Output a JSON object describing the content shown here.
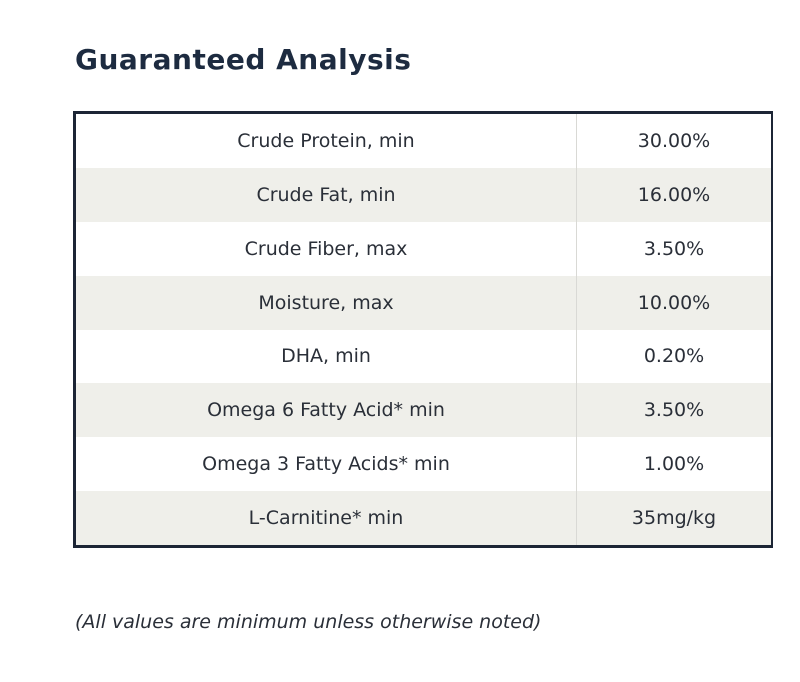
{
  "title": "Guaranteed Analysis",
  "rows": [
    {
      "label": "Crude Protein, min",
      "value": "30.00%"
    },
    {
      "label": "Crude Fat, min",
      "value": "16.00%"
    },
    {
      "label": "Crude Fiber, max",
      "value": "3.50%"
    },
    {
      "label": "Moisture, max",
      "value": "10.00%"
    },
    {
      "label": "DHA, min",
      "value": "0.20%"
    },
    {
      "label": "Omega 6 Fatty Acid* min",
      "value": "3.50%"
    },
    {
      "label": "Omega 3 Fatty Acids* min",
      "value": "1.00%"
    },
    {
      "label": "L-Carnitine* min",
      "value": "35mg/kg"
    }
  ],
  "note": "(All values are minimum unless otherwise noted)",
  "colors": {
    "title": "#1d2b40",
    "border": "#1c2535",
    "shaded_row": "#efefea",
    "text": "#2a2f38"
  }
}
